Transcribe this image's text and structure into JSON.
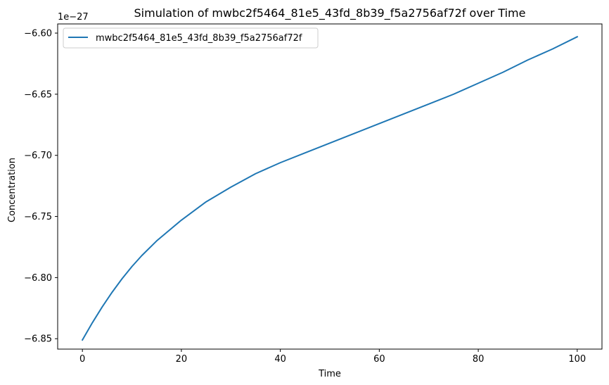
{
  "chart_data": {
    "type": "line",
    "title": "Simulation of mwbc2f5464_81e5_43fd_8b39_f5a2756af72f over Time",
    "xlabel": "Time",
    "ylabel": "Concentration",
    "y_offset_label": "1e−27",
    "xlim": [
      -5,
      105
    ],
    "ylim": [
      -6.8585,
      -6.5925
    ],
    "x_ticks": [
      0,
      20,
      40,
      60,
      80,
      100
    ],
    "x_tick_labels": [
      "0",
      "20",
      "40",
      "60",
      "80",
      "100"
    ],
    "y_ticks": [
      -6.85,
      -6.8,
      -6.75,
      -6.7,
      -6.65,
      -6.6
    ],
    "y_tick_labels": [
      "−6.85",
      "−6.80",
      "−6.75",
      "−6.70",
      "−6.65",
      "−6.60"
    ],
    "grid": false,
    "legend_position": "upper-left",
    "series": [
      {
        "name": "mwbc2f5464_81e5_43fd_8b39_f5a2756af72f",
        "color": "#1f77b4",
        "x": [
          0,
          2,
          4,
          6,
          8,
          10,
          12,
          15,
          20,
          25,
          30,
          35,
          40,
          45,
          50,
          55,
          60,
          65,
          70,
          75,
          80,
          85,
          90,
          95,
          100
        ],
        "y": [
          -6.851,
          -6.837,
          -6.824,
          -6.812,
          -6.801,
          -6.791,
          -6.782,
          -6.77,
          -6.753,
          -6.738,
          -6.726,
          -6.715,
          -6.706,
          -6.698,
          -6.69,
          -6.682,
          -6.674,
          -6.666,
          -6.658,
          -6.65,
          -6.641,
          -6.632,
          -6.622,
          -6.613,
          -6.603
        ]
      }
    ]
  }
}
